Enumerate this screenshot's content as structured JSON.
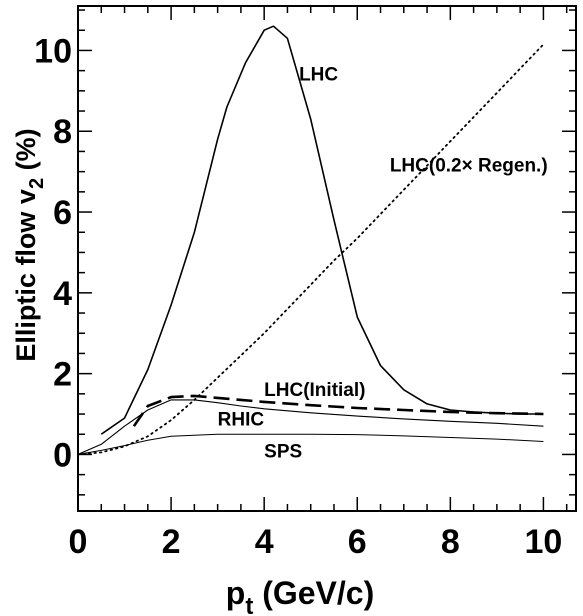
{
  "chart_data": {
    "type": "line",
    "xlabel": "p",
    "xlabel_sub": "t",
    "xlabel_rest": " (GeV/c)",
    "ylabel": "Elliptic flow v",
    "ylabel_sub": "2",
    "ylabel_rest": " (%)",
    "xlim": [
      0,
      10.7
    ],
    "ylim": [
      -1.4,
      11.1
    ],
    "xticks": [
      "0",
      "2",
      "4",
      "6",
      "8",
      "10"
    ],
    "yticks": [
      "0",
      "2",
      "4",
      "6",
      "8",
      "10"
    ],
    "series": [
      {
        "name": "LHC",
        "style": "solid",
        "width": 1.6,
        "x": [
          0.5,
          1.0,
          1.5,
          2.0,
          2.5,
          3.0,
          3.2,
          3.6,
          4.0,
          4.2,
          4.5,
          5.0,
          5.5,
          6.0,
          6.5,
          7.0,
          7.5,
          8.0,
          8.5,
          9.0,
          9.5,
          10.0
        ],
        "y": [
          0.5,
          0.9,
          2.1,
          3.7,
          5.5,
          7.8,
          8.6,
          9.7,
          10.5,
          10.6,
          10.3,
          8.3,
          5.8,
          3.4,
          2.2,
          1.6,
          1.25,
          1.1,
          1.05,
          1.02,
          1.0,
          1.0
        ]
      },
      {
        "name": "LHC(0.2× Regen.)",
        "style": "dotted",
        "width": 1.8,
        "x": [
          0.0,
          0.5,
          1.0,
          1.5,
          2.0,
          2.5,
          3.0,
          3.5,
          4.0,
          4.5,
          5.0,
          5.5,
          6.0,
          6.5,
          7.0,
          7.5,
          8.0,
          8.5,
          9.0,
          9.5,
          10.0
        ],
        "y": [
          0.0,
          0.05,
          0.2,
          0.45,
          0.85,
          1.35,
          1.9,
          2.45,
          3.0,
          3.6,
          4.2,
          4.8,
          5.35,
          5.95,
          6.55,
          7.15,
          7.75,
          8.35,
          8.95,
          9.55,
          10.15
        ]
      },
      {
        "name": "LHC(Initial)",
        "style": "dashed",
        "width": 2.6,
        "x": [
          1.2,
          1.5,
          2.0,
          2.5,
          3.0,
          3.5,
          4.0,
          5.0,
          6.0,
          7.0,
          8.0,
          9.0,
          10.0
        ],
        "y": [
          0.7,
          1.2,
          1.42,
          1.45,
          1.4,
          1.35,
          1.3,
          1.22,
          1.15,
          1.1,
          1.05,
          1.02,
          1.0
        ]
      },
      {
        "name": "RHIC",
        "style": "solid",
        "width": 1.1,
        "x": [
          0.0,
          0.5,
          1.0,
          1.5,
          2.0,
          2.5,
          3.0,
          3.5,
          4.0,
          5.0,
          6.0,
          7.0,
          8.0,
          9.0,
          10.0
        ],
        "y": [
          0.0,
          0.25,
          0.7,
          1.1,
          1.35,
          1.35,
          1.28,
          1.2,
          1.13,
          1.03,
          0.95,
          0.88,
          0.82,
          0.77,
          0.7
        ]
      },
      {
        "name": "SPS",
        "style": "solid",
        "width": 1.0,
        "x": [
          0.0,
          0.5,
          1.0,
          1.5,
          2.0,
          3.0,
          4.0,
          5.0,
          6.0,
          7.0,
          8.0,
          9.0,
          10.0
        ],
        "y": [
          0.0,
          0.1,
          0.22,
          0.35,
          0.45,
          0.5,
          0.5,
          0.5,
          0.49,
          0.46,
          0.42,
          0.38,
          0.32
        ]
      }
    ],
    "annotations": [
      {
        "text": "LHC",
        "x": 4.75,
        "y": 9.25
      },
      {
        "text": "LHC(0.2× Regen.)",
        "x": 6.7,
        "y": 7.0
      },
      {
        "text": "LHC(Initial)",
        "x": 4.0,
        "y": 1.45
      },
      {
        "text": "RHIC",
        "x": 3.0,
        "y": 0.72
      },
      {
        "text": "SPS",
        "x": 4.0,
        "y": -0.08
      }
    ],
    "grid": false,
    "legend": "none"
  }
}
